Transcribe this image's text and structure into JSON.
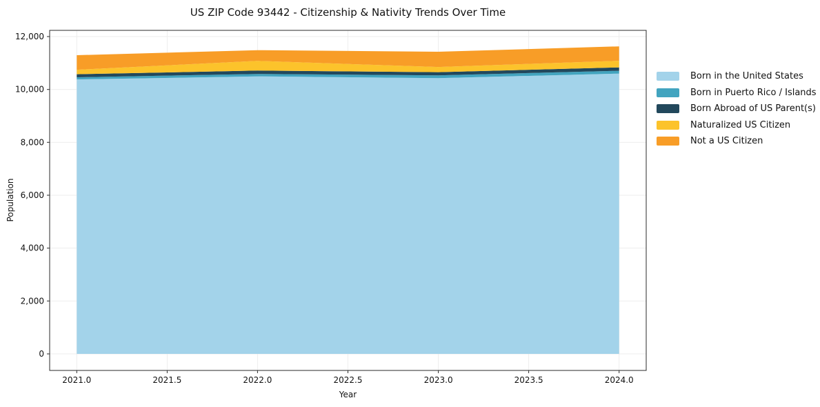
{
  "background": "#ffffff",
  "chart_data": {
    "type": "area",
    "stacked": true,
    "title": "US ZIP Code 93442 - Citizenship & Nativity Trends Over Time",
    "xlabel": "Year",
    "ylabel": "Population",
    "x": [
      2021,
      2022,
      2023,
      2024
    ],
    "series": [
      {
        "name": "Born in the United States",
        "color": "#A3D3EA",
        "values": [
          10380,
          10495,
          10430,
          10600
        ]
      },
      {
        "name": "Born in Puerto Rico / Islands",
        "color": "#42A4BF",
        "values": [
          80,
          90,
          105,
          105
        ]
      },
      {
        "name": "Born Abroad of US Parent(s)",
        "color": "#22485C",
        "values": [
          115,
          130,
          120,
          130
        ]
      },
      {
        "name": "Naturalized US Citizen",
        "color": "#FCC32B",
        "values": [
          170,
          365,
          195,
          250
        ]
      },
      {
        "name": "Not a US Citizen",
        "color": "#F89D27",
        "values": [
          550,
          405,
          575,
          545
        ]
      }
    ],
    "stack_totals": [
      11295,
      11485,
      11425,
      11630
    ],
    "x_ticks": [
      "2021.0",
      "2021.5",
      "2022.0",
      "2022.5",
      "2023.0",
      "2023.5",
      "2024.0"
    ],
    "x_tick_values": [
      2021,
      2021.5,
      2022,
      2022.5,
      2023,
      2023.5,
      2024
    ],
    "y_ticks": [
      "0",
      "2,000",
      "4,000",
      "6,000",
      "8,000",
      "10,000",
      "12,000"
    ],
    "y_tick_values": [
      0,
      2000,
      4000,
      6000,
      8000,
      10000,
      12000
    ],
    "xlim": [
      2020.85,
      2024.15
    ],
    "ylim": [
      0,
      12000
    ],
    "grid": true,
    "legend_position": "right-outside"
  }
}
